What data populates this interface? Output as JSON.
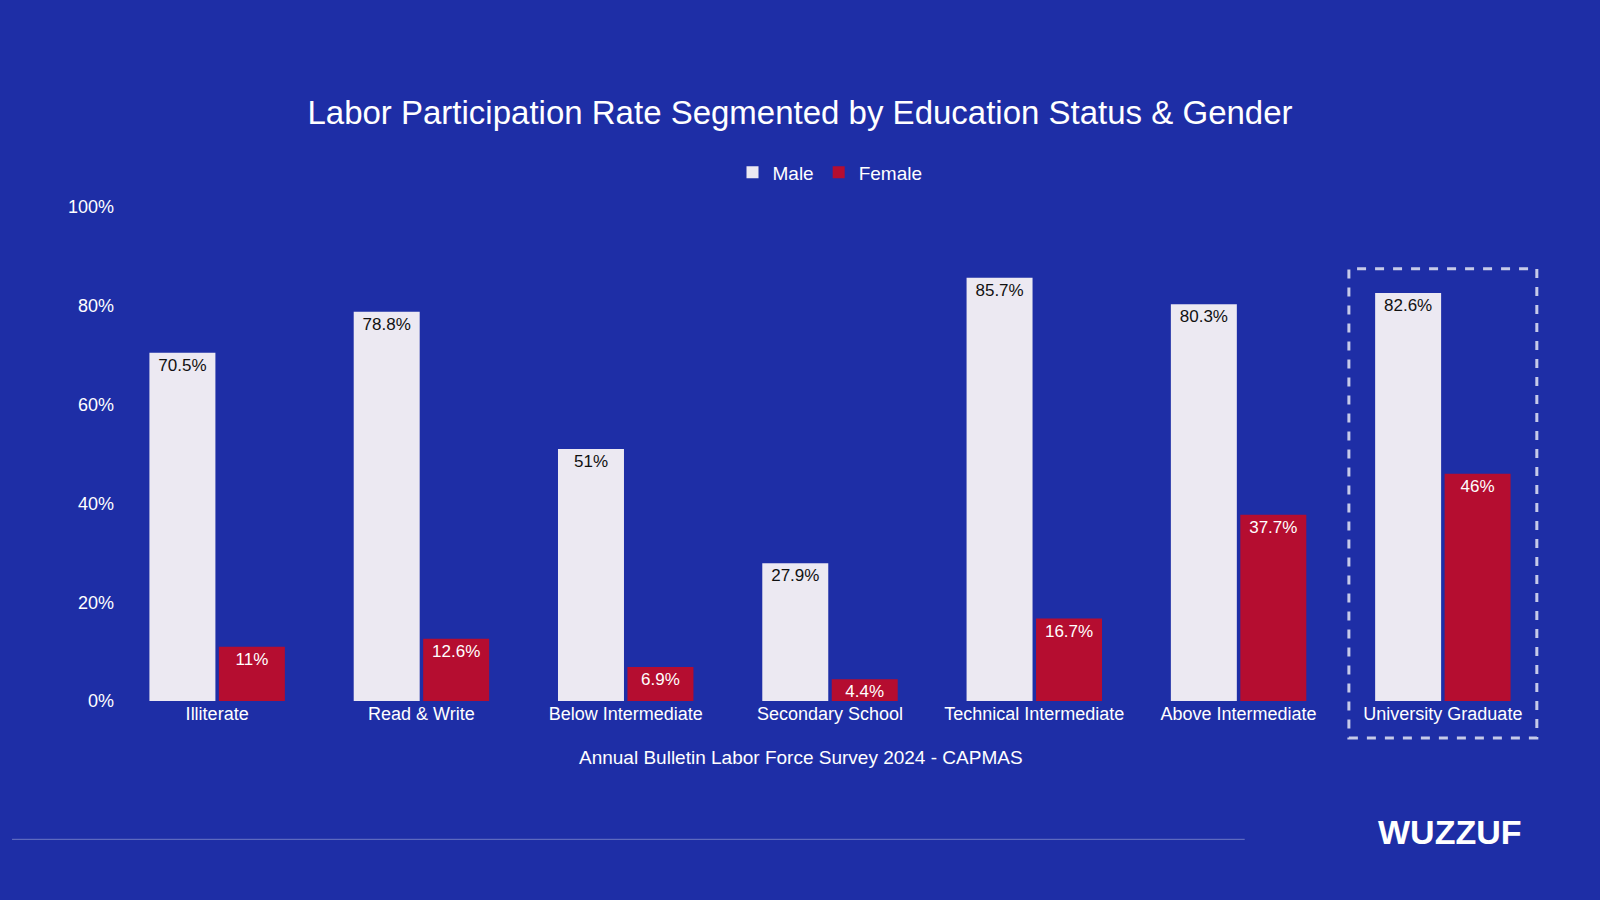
{
  "chart_data": {
    "type": "bar",
    "title": "Labor Participation Rate Segmented by Education Status & Gender",
    "categories": [
      "Illiterate",
      "Read & Write",
      "Below Intermediate",
      "Secondary School",
      "Technical Intermediate",
      "Above Intermediate",
      "University Graduate"
    ],
    "series": [
      {
        "name": "Male",
        "color": "#ece9f2",
        "values": [
          70.5,
          78.8,
          51,
          27.9,
          85.7,
          80.3,
          82.6
        ],
        "value_labels": [
          "70.5%",
          "78.8%",
          "51%",
          "27.9%",
          "85.7%",
          "80.3%",
          "82.6%"
        ]
      },
      {
        "name": "Female",
        "color": "#b50d30",
        "values": [
          11,
          12.6,
          6.9,
          4.4,
          16.7,
          37.7,
          46
        ],
        "value_labels": [
          "11%",
          "12.6%",
          "6.9%",
          "4.4%",
          "16.7%",
          "37.7%",
          "46%"
        ]
      }
    ],
    "ylim": [
      0,
      100
    ],
    "yticks": [
      {
        "value": 0,
        "label": "0%"
      },
      {
        "value": 20,
        "label": "20%"
      },
      {
        "value": 40,
        "label": "40%"
      },
      {
        "value": 60,
        "label": "60%"
      },
      {
        "value": 80,
        "label": "80%"
      },
      {
        "value": 100,
        "label": "100%"
      }
    ],
    "grid": false,
    "legend": "top",
    "data_labels": true,
    "annotations": [
      "Annual Bulletin Labor Force Survey 2024 - CAPMAS",
      "WUZZUF"
    ]
  }
}
